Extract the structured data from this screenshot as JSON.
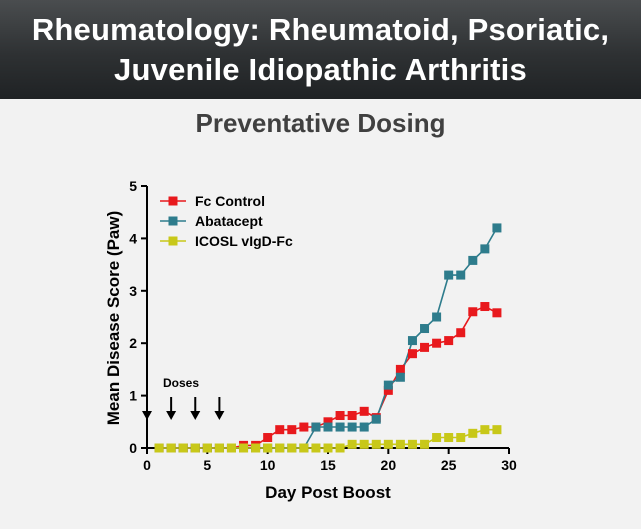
{
  "banner": {
    "title_line1": "Rheumatology: Rheumatoid, Psoriatic,",
    "title_line2": "Juvenile Idiopathic Arthritis"
  },
  "chart_data": {
    "type": "line",
    "title": "Preventative Dosing",
    "xlabel": "Day Post Boost",
    "ylabel": "Mean Disease Score  (Paw)",
    "xlim": [
      0,
      30
    ],
    "ylim": [
      0,
      5
    ],
    "xticks": [
      0,
      5,
      10,
      15,
      20,
      25,
      30
    ],
    "yticks": [
      0,
      1,
      2,
      3,
      4,
      5
    ],
    "grid": false,
    "legend_position": "top-left",
    "annotation": {
      "label": "Doses",
      "days": [
        0,
        2,
        4,
        6
      ]
    },
    "series": [
      {
        "name": "Fc Control",
        "color": "#e8191d",
        "x": [
          1,
          2,
          3,
          4,
          5,
          6,
          7,
          8,
          9,
          10,
          11,
          12,
          13,
          14,
          15,
          16,
          17,
          18,
          19,
          20,
          21,
          22,
          23,
          24,
          25,
          26,
          27,
          28,
          29
        ],
        "y": [
          0,
          0,
          0,
          0,
          0,
          0,
          0,
          0.05,
          0.05,
          0.2,
          0.35,
          0.35,
          0.4,
          0.4,
          0.5,
          0.62,
          0.62,
          0.7,
          0.58,
          1.1,
          1.5,
          1.8,
          1.92,
          2.0,
          2.05,
          2.2,
          2.6,
          2.7,
          2.58
        ]
      },
      {
        "name": "Abatacept",
        "color": "#2e7c8c",
        "x": [
          1,
          2,
          3,
          4,
          5,
          6,
          7,
          8,
          9,
          10,
          11,
          12,
          13,
          14,
          15,
          16,
          17,
          18,
          19,
          20,
          21,
          22,
          23,
          24,
          25,
          26,
          27,
          28,
          29
        ],
        "y": [
          0,
          0,
          0,
          0,
          0,
          0,
          0,
          0,
          0,
          0,
          0,
          0,
          0,
          0.4,
          0.4,
          0.4,
          0.4,
          0.4,
          0.55,
          1.2,
          1.35,
          2.05,
          2.28,
          2.5,
          3.3,
          3.3,
          3.58,
          3.8,
          4.2
        ]
      },
      {
        "name": "ICOSL vIgD-Fc",
        "color": "#c8c819",
        "x": [
          1,
          2,
          3,
          4,
          5,
          6,
          7,
          8,
          9,
          10,
          11,
          12,
          13,
          14,
          15,
          16,
          17,
          18,
          19,
          20,
          21,
          22,
          23,
          24,
          25,
          26,
          27,
          28,
          29
        ],
        "y": [
          0,
          0,
          0,
          0,
          0,
          0,
          0,
          0,
          0,
          0,
          0,
          0,
          0,
          0,
          0,
          0,
          0.07,
          0.07,
          0.07,
          0.07,
          0.07,
          0.07,
          0.07,
          0.2,
          0.2,
          0.2,
          0.28,
          0.35,
          0.35
        ]
      }
    ]
  }
}
